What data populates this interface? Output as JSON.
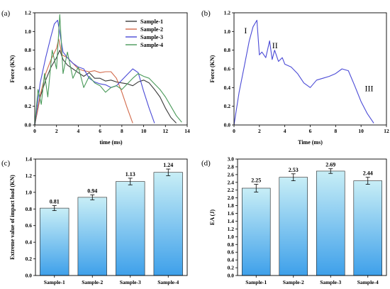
{
  "chart_data": [
    {
      "id": "a",
      "type": "line",
      "panel_label": "(a)",
      "xlabel": "time (ms)",
      "ylabel": "Force (KN)",
      "xlim": [
        0,
        14
      ],
      "ylim": [
        0,
        1.2
      ],
      "xticks": [
        0,
        2,
        4,
        6,
        8,
        10,
        12,
        14
      ],
      "yticks": [
        0.0,
        0.2,
        0.4,
        0.6,
        0.8,
        1.0,
        1.2
      ],
      "ytick_labels": [
        "0.0",
        "0.2",
        "0.4",
        "0.6",
        "0.8",
        "1.0",
        "1.2"
      ],
      "legend_position": "top-right",
      "series": [
        {
          "name": "Sample-1",
          "color": "#3a3a3a",
          "x": [
            0,
            0.5,
            1.0,
            1.5,
            2.0,
            2.3,
            2.6,
            3.0,
            3.5,
            4.0,
            4.5,
            5.0,
            5.5,
            6.0,
            6.5,
            7.0,
            7.5,
            8.0,
            8.5,
            9.0,
            9.5,
            10.0,
            10.5,
            11.0,
            11.5,
            12.0,
            12.5,
            13.0
          ],
          "y": [
            0,
            0.3,
            0.48,
            0.62,
            0.72,
            0.8,
            0.7,
            0.64,
            0.6,
            0.56,
            0.52,
            0.56,
            0.5,
            0.5,
            0.47,
            0.48,
            0.46,
            0.45,
            0.44,
            0.42,
            0.46,
            0.48,
            0.45,
            0.38,
            0.3,
            0.18,
            0.08,
            0.02
          ]
        },
        {
          "name": "Sample-2",
          "color": "#d2694a",
          "x": [
            0,
            0.5,
            1.0,
            1.5,
            2.0,
            2.2,
            2.5,
            3.0,
            3.5,
            4.0,
            4.5,
            5.0,
            5.5,
            6.0,
            6.5,
            7.0,
            7.5,
            8.0,
            8.5,
            9.0
          ],
          "y": [
            0,
            0.32,
            0.55,
            0.7,
            0.82,
            0.92,
            0.75,
            0.72,
            0.66,
            0.6,
            0.58,
            0.57,
            0.58,
            0.56,
            0.57,
            0.57,
            0.5,
            0.35,
            0.18,
            0.02
          ]
        },
        {
          "name": "Sample-3",
          "color": "#4a4ad6",
          "x": [
            0,
            0.5,
            1.0,
            1.5,
            1.8,
            2.1,
            2.6,
            3.0,
            3.5,
            4.0,
            4.5,
            5.0,
            5.5,
            6.0,
            6.5,
            7.0,
            7.5,
            8.0,
            8.5,
            9.0,
            9.5,
            10.0,
            10.5,
            11.0
          ],
          "y": [
            0,
            0.45,
            0.72,
            0.95,
            1.08,
            1.12,
            0.78,
            0.72,
            0.66,
            0.62,
            0.6,
            0.5,
            0.46,
            0.44,
            0.43,
            0.4,
            0.42,
            0.48,
            0.54,
            0.6,
            0.56,
            0.36,
            0.18,
            0.02
          ]
        },
        {
          "name": "Sample-4",
          "color": "#4a9a5a",
          "x": [
            0,
            0.3,
            0.6,
            0.9,
            1.2,
            1.6,
            2.0,
            2.3,
            2.6,
            3.0,
            3.5,
            4.0,
            4.5,
            5.0,
            5.5,
            6.0,
            6.5,
            7.0,
            7.5,
            8.0,
            8.5,
            9.0,
            9.5,
            10.0,
            10.5,
            11.0,
            11.5,
            12.0,
            12.5,
            13.0,
            13.5
          ],
          "y": [
            0,
            0.38,
            0.22,
            0.55,
            0.3,
            0.8,
            0.6,
            1.18,
            0.55,
            0.78,
            0.5,
            0.62,
            0.4,
            0.52,
            0.45,
            0.42,
            0.35,
            0.4,
            0.42,
            0.38,
            0.44,
            0.5,
            0.55,
            0.52,
            0.5,
            0.44,
            0.38,
            0.3,
            0.2,
            0.1,
            0.03
          ]
        }
      ]
    },
    {
      "id": "b",
      "type": "line",
      "panel_label": "(b)",
      "xlabel": "Time (ms)",
      "ylabel": "Force (KN)",
      "xlim": [
        0,
        12
      ],
      "ylim": [
        0,
        1.2
      ],
      "xticks": [
        0,
        2,
        4,
        6,
        8,
        10,
        12
      ],
      "yticks": [
        0.0,
        0.2,
        0.4,
        0.6,
        0.8,
        1.0,
        1.2
      ],
      "ytick_labels": [
        "0.0",
        "0.2",
        "0.4",
        "0.6",
        "0.8",
        "1.0",
        "1.2"
      ],
      "annotations": [
        {
          "text": "I",
          "x": 0.8,
          "y": 0.98
        },
        {
          "text": "II",
          "x": 3.0,
          "y": 0.82
        },
        {
          "text": "III",
          "x": 10.3,
          "y": 0.36
        }
      ],
      "series": [
        {
          "name": "",
          "color": "#4a4ad6",
          "x": [
            0,
            0.4,
            0.8,
            1.2,
            1.5,
            1.8,
            2.0,
            2.2,
            2.5,
            2.8,
            3.0,
            3.2,
            3.5,
            3.8,
            4.0,
            4.5,
            5.0,
            5.5,
            6.0,
            6.5,
            7.0,
            7.5,
            8.0,
            8.5,
            9.0,
            9.5,
            10.0,
            10.5,
            11.0
          ],
          "y": [
            0,
            0.35,
            0.62,
            0.9,
            1.05,
            1.12,
            0.75,
            0.78,
            0.72,
            0.9,
            0.7,
            0.8,
            0.68,
            0.72,
            0.65,
            0.62,
            0.55,
            0.45,
            0.4,
            0.48,
            0.5,
            0.52,
            0.55,
            0.6,
            0.58,
            0.42,
            0.25,
            0.12,
            0.02
          ]
        }
      ]
    },
    {
      "id": "c",
      "type": "bar",
      "panel_label": "(c)",
      "categories": [
        "Sample-1",
        "Sample-2",
        "Sample-3",
        "Sample-4"
      ],
      "values": [
        0.81,
        0.94,
        1.13,
        1.24
      ],
      "value_labels": [
        "0.81",
        "0.94",
        "1.13",
        "1.24"
      ],
      "errors": [
        0.03,
        0.03,
        0.04,
        0.04
      ],
      "ylabel": "Extreme value of impact load (KN)",
      "xlabel": "",
      "ylim": [
        0,
        1.4
      ],
      "yticks": [
        0.0,
        0.2,
        0.4,
        0.6,
        0.8,
        1.0,
        1.2,
        1.4
      ],
      "ytick_labels": [
        "0.0",
        "0.2",
        "0.4",
        "0.6",
        "0.8",
        "1.0",
        "1.2",
        "1.4"
      ],
      "bar_color_top": "#c8eef6",
      "bar_color_bottom": "#3ea0ea"
    },
    {
      "id": "d",
      "type": "bar",
      "panel_label": "(d)",
      "categories": [
        "Sample-1",
        "Sample-2",
        "Sample-3",
        "Sample-4"
      ],
      "values": [
        2.25,
        2.53,
        2.69,
        2.44
      ],
      "value_labels": [
        "2.25",
        "2.53",
        "2.69",
        "2.44"
      ],
      "errors": [
        0.1,
        0.09,
        0.06,
        0.09
      ],
      "ylabel": "EA (J)",
      "xlabel": "",
      "ylim": [
        0,
        3.0
      ],
      "yticks": [
        0.0,
        0.2,
        0.4,
        0.6,
        0.8,
        1.0,
        1.2,
        1.4,
        1.6,
        1.8,
        2.0,
        2.2,
        2.4,
        2.6,
        2.8,
        3.0
      ],
      "ytick_labels": [
        "0.0",
        "0.2",
        "0.4",
        "0.6",
        "0.8",
        "1.0",
        "1.2",
        "1.4",
        "1.6",
        "1.8",
        "2.0",
        "2.2",
        "2.4",
        "2.6",
        "2.8",
        "3.0"
      ],
      "bar_color_top": "#c8eef6",
      "bar_color_bottom": "#3ea0ea"
    }
  ]
}
